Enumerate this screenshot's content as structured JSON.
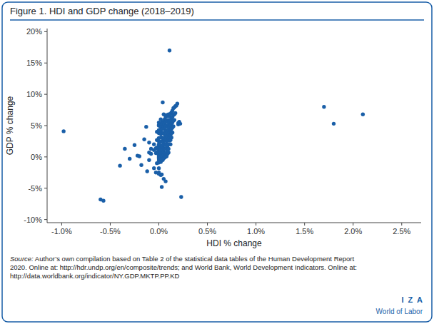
{
  "chart_data": {
    "type": "scatter",
    "title": "Figure 1. HDI and GDP change (2018–2019)",
    "x_label": "HDI % change",
    "y_label": "GDP % change",
    "color": "#1A5FA8",
    "grid": false,
    "xlim": [
      -0.0115,
      0.027
    ],
    "ylim": [
      -0.105,
      0.205
    ],
    "xticks": [
      {
        "value": -0.01,
        "label": "-1.0%"
      },
      {
        "value": -0.005,
        "label": "-0.5%"
      },
      {
        "value": 0.0,
        "label": "0.0%"
      },
      {
        "value": 0.005,
        "label": "0.5%"
      },
      {
        "value": 0.01,
        "label": "1.0%"
      },
      {
        "value": 0.015,
        "label": "1.5%"
      },
      {
        "value": 0.02,
        "label": "2.0%"
      },
      {
        "value": 0.025,
        "label": "2.5%"
      }
    ],
    "yticks": [
      {
        "value": -0.1,
        "label": "-10%"
      },
      {
        "value": -0.05,
        "label": "-5%"
      },
      {
        "value": 0.0,
        "label": "0%"
      },
      {
        "value": 0.05,
        "label": "5%"
      },
      {
        "value": 0.1,
        "label": "10%"
      },
      {
        "value": 0.15,
        "label": "15%"
      },
      {
        "value": 0.2,
        "label": "20%"
      }
    ],
    "annotations": [
      "Source:",
      " Author’s own compilation based on Table 2 of the statistical data tables of the Human Development Report\n2020. Online at: http://hdr.undp.org/en/composite/trends; and World Bank, World Development Indicators. Online at:\nhttp://data.worldbank.org/indicator/NY.GDP.MKTP.PP.KD",
      "I  Z  A",
      "World of Labor"
    ],
    "x": [
      -0.0098,
      -0.006,
      -0.0057,
      -0.004,
      -0.0035,
      -0.003,
      -0.0025,
      -0.0022,
      -0.002,
      -0.0018,
      -0.0015,
      -0.0013,
      -0.0012,
      -0.001,
      -0.001,
      -0.001,
      -0.0008,
      -0.0008,
      -0.0005,
      -0.0005,
      -0.0005,
      -0.0003,
      -0.0003,
      -0.0003,
      -0.0002,
      -0.0002,
      -0.0002,
      -0.0002,
      -0.0002,
      0.0,
      0.0,
      0.0,
      0.0,
      0.0,
      0.0,
      0.0,
      0.0,
      0.0,
      0.0,
      0.0,
      0.0,
      0.0,
      0.0,
      0.0,
      0.0,
      0.0,
      0.0,
      0.0,
      0.0,
      0.0,
      0.0,
      0.0,
      0.0,
      0.0,
      0.0,
      0.0002,
      0.0002,
      0.0002,
      0.0002,
      0.0002,
      0.0002,
      0.0002,
      0.0002,
      0.0002,
      0.0002,
      0.0002,
      0.0002,
      0.0002,
      0.0002,
      0.0002,
      0.0002,
      0.0002,
      0.0003,
      0.0003,
      0.0003,
      0.0003,
      0.0003,
      0.0003,
      0.0003,
      0.0003,
      0.0003,
      0.0003,
      0.0003,
      0.0004,
      0.0004,
      0.0004,
      0.0004,
      0.0004,
      0.0004,
      0.0004,
      0.0004,
      0.0004,
      0.0004,
      0.0004,
      0.0005,
      0.0005,
      0.0005,
      0.0005,
      0.0005,
      0.0005,
      0.0005,
      0.0005,
      0.0005,
      0.0005,
      0.0005,
      0.0006,
      0.0006,
      0.0006,
      0.0006,
      0.0006,
      0.0006,
      0.0006,
      0.0006,
      0.0006,
      0.0007,
      0.0007,
      0.0007,
      0.0007,
      0.0007,
      0.0007,
      0.0007,
      0.0007,
      0.0007,
      0.0007,
      0.0007,
      0.0008,
      0.0008,
      0.0008,
      0.0008,
      0.0008,
      0.0008,
      0.0008,
      0.0008,
      0.0008,
      0.0008,
      0.0009,
      0.0009,
      0.0009,
      0.0009,
      0.0009,
      0.0009,
      0.0009,
      0.0009,
      0.0009,
      0.001,
      0.001,
      0.001,
      0.001,
      0.001,
      0.001,
      0.001,
      0.001,
      0.001,
      0.0011,
      0.0011,
      0.0011,
      0.0011,
      0.0011,
      0.0011,
      0.0011,
      0.0012,
      0.0012,
      0.0012,
      0.0012,
      0.0012,
      0.0012,
      0.0012,
      0.0013,
      0.0013,
      0.0013,
      0.0013,
      0.0013,
      0.0013,
      0.0014,
      0.0014,
      0.0014,
      0.0014,
      0.0014,
      0.0015,
      0.0015,
      0.0015,
      0.0015,
      0.0016,
      0.0016,
      0.0016,
      0.0017,
      0.0017,
      0.0018,
      0.0019,
      0.002,
      0.002,
      0.0021,
      0.0022,
      0.0023,
      0.017,
      0.018,
      0.021
    ],
    "values": [
      0.041,
      -0.068,
      -0.07,
      -0.014,
      0.013,
      -0.003,
      0.019,
      0.002,
      0.001,
      -0.013,
      0.028,
      0.048,
      -0.023,
      0.023,
      0.007,
      -0.005,
      0.013,
      0.005,
      0.02,
      0.011,
      -0.018,
      0.014,
      0.006,
      -0.025,
      0.04,
      0.027,
      0.015,
      0.008,
      -0.01,
      0.055,
      0.051,
      0.05,
      0.043,
      0.038,
      0.03,
      0.025,
      0.02,
      0.019,
      0.016,
      0.014,
      0.012,
      0.01,
      0.008,
      0.006,
      0.005,
      0.003,
      0.002,
      0.001,
      -0.001,
      -0.002,
      -0.005,
      -0.009,
      -0.018,
      -0.025,
      -0.027,
      0.06,
      0.054,
      0.048,
      0.04,
      0.037,
      0.031,
      0.024,
      0.018,
      0.014,
      0.01,
      0.006,
      0.004,
      0.002,
      0.0,
      -0.002,
      -0.008,
      -0.029,
      0.052,
      0.044,
      0.031,
      0.025,
      0.018,
      0.009,
      0.006,
      0.002,
      -0.004,
      -0.028,
      -0.048,
      0.087,
      0.056,
      0.045,
      0.038,
      0.03,
      0.024,
      0.017,
      0.011,
      0.005,
      0.001,
      -0.005,
      0.068,
      0.055,
      0.049,
      0.038,
      0.03,
      0.021,
      0.014,
      0.008,
      0.003,
      -0.002,
      -0.035,
      0.06,
      0.054,
      0.044,
      0.036,
      0.027,
      0.02,
      0.013,
      0.006,
      -0.001,
      0.064,
      0.056,
      0.049,
      0.041,
      0.033,
      0.026,
      0.019,
      0.013,
      0.006,
      0.0,
      -0.039,
      0.067,
      0.058,
      0.05,
      0.042,
      0.035,
      0.028,
      0.021,
      0.014,
      0.007,
      0.001,
      0.065,
      0.056,
      0.048,
      0.04,
      0.033,
      0.026,
      0.018,
      0.011,
      0.005,
      0.068,
      0.059,
      0.051,
      0.043,
      0.036,
      0.028,
      0.02,
      0.013,
      0.007,
      0.065,
      0.056,
      0.048,
      0.04,
      0.033,
      0.026,
      0.17,
      0.069,
      0.059,
      0.051,
      0.043,
      0.035,
      0.027,
      0.02,
      0.071,
      0.062,
      0.053,
      0.045,
      0.038,
      0.031,
      0.074,
      0.064,
      0.055,
      0.047,
      0.039,
      0.078,
      0.067,
      0.058,
      0.049,
      0.079,
      0.068,
      0.059,
      0.081,
      0.07,
      0.082,
      0.085,
      0.054,
      0.052,
      0.056,
      0.053,
      -0.064,
      0.08,
      0.053,
      0.068
    ]
  }
}
